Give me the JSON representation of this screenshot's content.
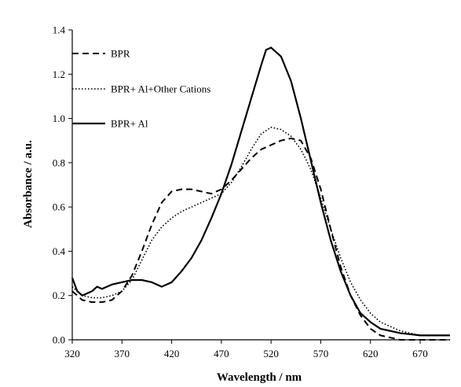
{
  "chart_data": {
    "type": "line",
    "title": "",
    "xlabel": "Wavelength / nm",
    "ylabel": "Absorbance / a.u.",
    "xlim": [
      320,
      700
    ],
    "ylim": [
      0,
      1.4
    ],
    "x_ticks": [
      320,
      370,
      420,
      470,
      520,
      570,
      620,
      670
    ],
    "y_ticks": [
      0.0,
      0.2,
      0.4,
      0.6,
      0.8,
      1.0,
      1.2,
      1.4
    ],
    "x_tick_labels": [
      "320",
      "370",
      "420",
      "470",
      "520",
      "570",
      "620",
      "670"
    ],
    "y_tick_labels": [
      "0.0",
      "0.2",
      "0.4",
      "0.6",
      "0.8",
      "1.0",
      "1.2",
      "1.4"
    ],
    "grid": false,
    "legend_position": "top-left",
    "series": [
      {
        "name": "BPR",
        "style": "dashed",
        "color": "#000000",
        "x": [
          320,
          330,
          340,
          350,
          360,
          370,
          380,
          390,
          400,
          410,
          420,
          430,
          440,
          450,
          460,
          470,
          480,
          490,
          500,
          510,
          520,
          530,
          540,
          550,
          560,
          570,
          580,
          590,
          600,
          610,
          620,
          630,
          640,
          650,
          660,
          670,
          680,
          690,
          700
        ],
        "values": [
          0.22,
          0.18,
          0.17,
          0.17,
          0.18,
          0.22,
          0.29,
          0.4,
          0.52,
          0.62,
          0.67,
          0.68,
          0.68,
          0.67,
          0.66,
          0.68,
          0.72,
          0.77,
          0.82,
          0.86,
          0.88,
          0.9,
          0.91,
          0.9,
          0.82,
          0.68,
          0.5,
          0.33,
          0.2,
          0.11,
          0.05,
          0.02,
          0.01,
          0.0,
          0.0,
          0.0,
          0.0,
          0.0,
          0.0
        ]
      },
      {
        "name": "BPR+ Al+Other Cations",
        "style": "dotted",
        "color": "#000000",
        "x": [
          320,
          330,
          340,
          350,
          360,
          370,
          380,
          390,
          400,
          410,
          420,
          430,
          440,
          450,
          460,
          470,
          480,
          490,
          500,
          510,
          520,
          530,
          540,
          550,
          560,
          570,
          580,
          590,
          600,
          610,
          620,
          630,
          640,
          650,
          660,
          670,
          680,
          690,
          700
        ],
        "values": [
          0.24,
          0.2,
          0.19,
          0.19,
          0.2,
          0.22,
          0.27,
          0.36,
          0.45,
          0.51,
          0.55,
          0.58,
          0.6,
          0.62,
          0.64,
          0.66,
          0.71,
          0.78,
          0.86,
          0.93,
          0.96,
          0.95,
          0.92,
          0.86,
          0.77,
          0.64,
          0.5,
          0.37,
          0.26,
          0.18,
          0.12,
          0.08,
          0.06,
          0.04,
          0.03,
          0.02,
          0.02,
          0.02,
          0.02
        ]
      },
      {
        "name": "BPR+ Al",
        "style": "solid",
        "color": "#000000",
        "x": [
          320,
          325,
          330,
          340,
          345,
          350,
          360,
          370,
          380,
          390,
          400,
          410,
          420,
          430,
          440,
          450,
          460,
          470,
          480,
          490,
          500,
          510,
          515,
          520,
          530,
          540,
          550,
          560,
          570,
          580,
          590,
          600,
          610,
          620,
          630,
          640,
          650,
          660,
          670,
          680,
          690,
          700
        ],
        "values": [
          0.28,
          0.22,
          0.2,
          0.22,
          0.24,
          0.23,
          0.25,
          0.26,
          0.27,
          0.27,
          0.26,
          0.24,
          0.26,
          0.31,
          0.37,
          0.45,
          0.55,
          0.66,
          0.79,
          0.94,
          1.09,
          1.24,
          1.31,
          1.32,
          1.28,
          1.17,
          1.0,
          0.81,
          0.62,
          0.45,
          0.31,
          0.2,
          0.12,
          0.08,
          0.05,
          0.04,
          0.03,
          0.025,
          0.02,
          0.02,
          0.02,
          0.02
        ]
      }
    ]
  }
}
